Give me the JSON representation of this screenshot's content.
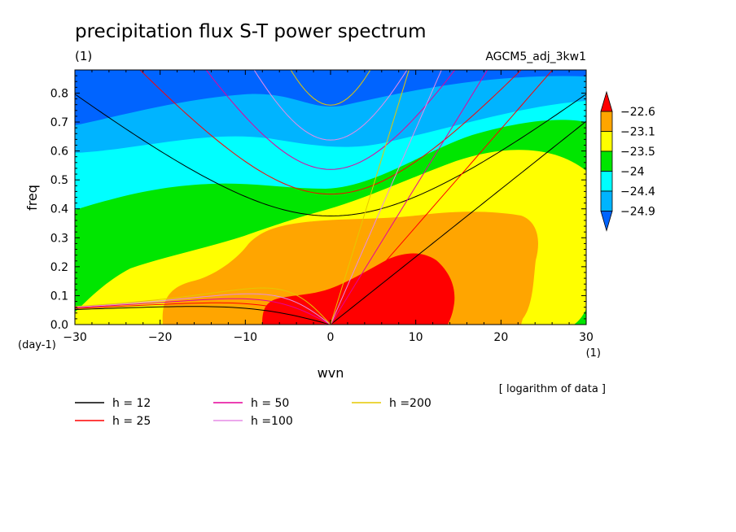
{
  "chart_data": {
    "type": "heatmap",
    "title": "precipitation flux S-T power spectrum",
    "subtitle_left": "(1)",
    "subtitle_right": "AGCM5_adj_3kw1",
    "xlabel": "wvn",
    "ylabel": "freq",
    "x_unit": "(1)",
    "y_unit": "(day-1)",
    "xlim": [
      -30,
      30
    ],
    "ylim": [
      0,
      0.88
    ],
    "x_ticks": [
      -30,
      -20,
      -10,
      0,
      10,
      20,
      30
    ],
    "y_ticks": [
      0.0,
      0.1,
      0.2,
      0.3,
      0.4,
      0.5,
      0.6,
      0.7,
      0.8
    ],
    "note": "[ logarithm of data ]",
    "colorbar": {
      "levels": [
        -24.9,
        -24.4,
        -24,
        -23.5,
        -23.1,
        -22.6
      ],
      "level_labels": [
        "-24.9",
        "-24.4",
        "-24",
        "-23.5",
        "-23.1",
        "-22.6"
      ],
      "colors": [
        "#0064ff",
        "#00b4ff",
        "#00ffff",
        "#00e600",
        "#ffff00",
        "#ffa500",
        "#ff0000"
      ]
    },
    "dispersion_curves": [
      {
        "label": "h = 12",
        "h": 12,
        "color": "#000000"
      },
      {
        "label": "h = 25",
        "h": 25,
        "color": "#ff0000"
      },
      {
        "label": "h = 50",
        "h": 50,
        "color": "#e6009a"
      },
      {
        "label": "h =100",
        "h": 100,
        "color": "#e68ce6"
      },
      {
        "label": "h =200",
        "h": 200,
        "color": "#e6c800"
      }
    ]
  }
}
